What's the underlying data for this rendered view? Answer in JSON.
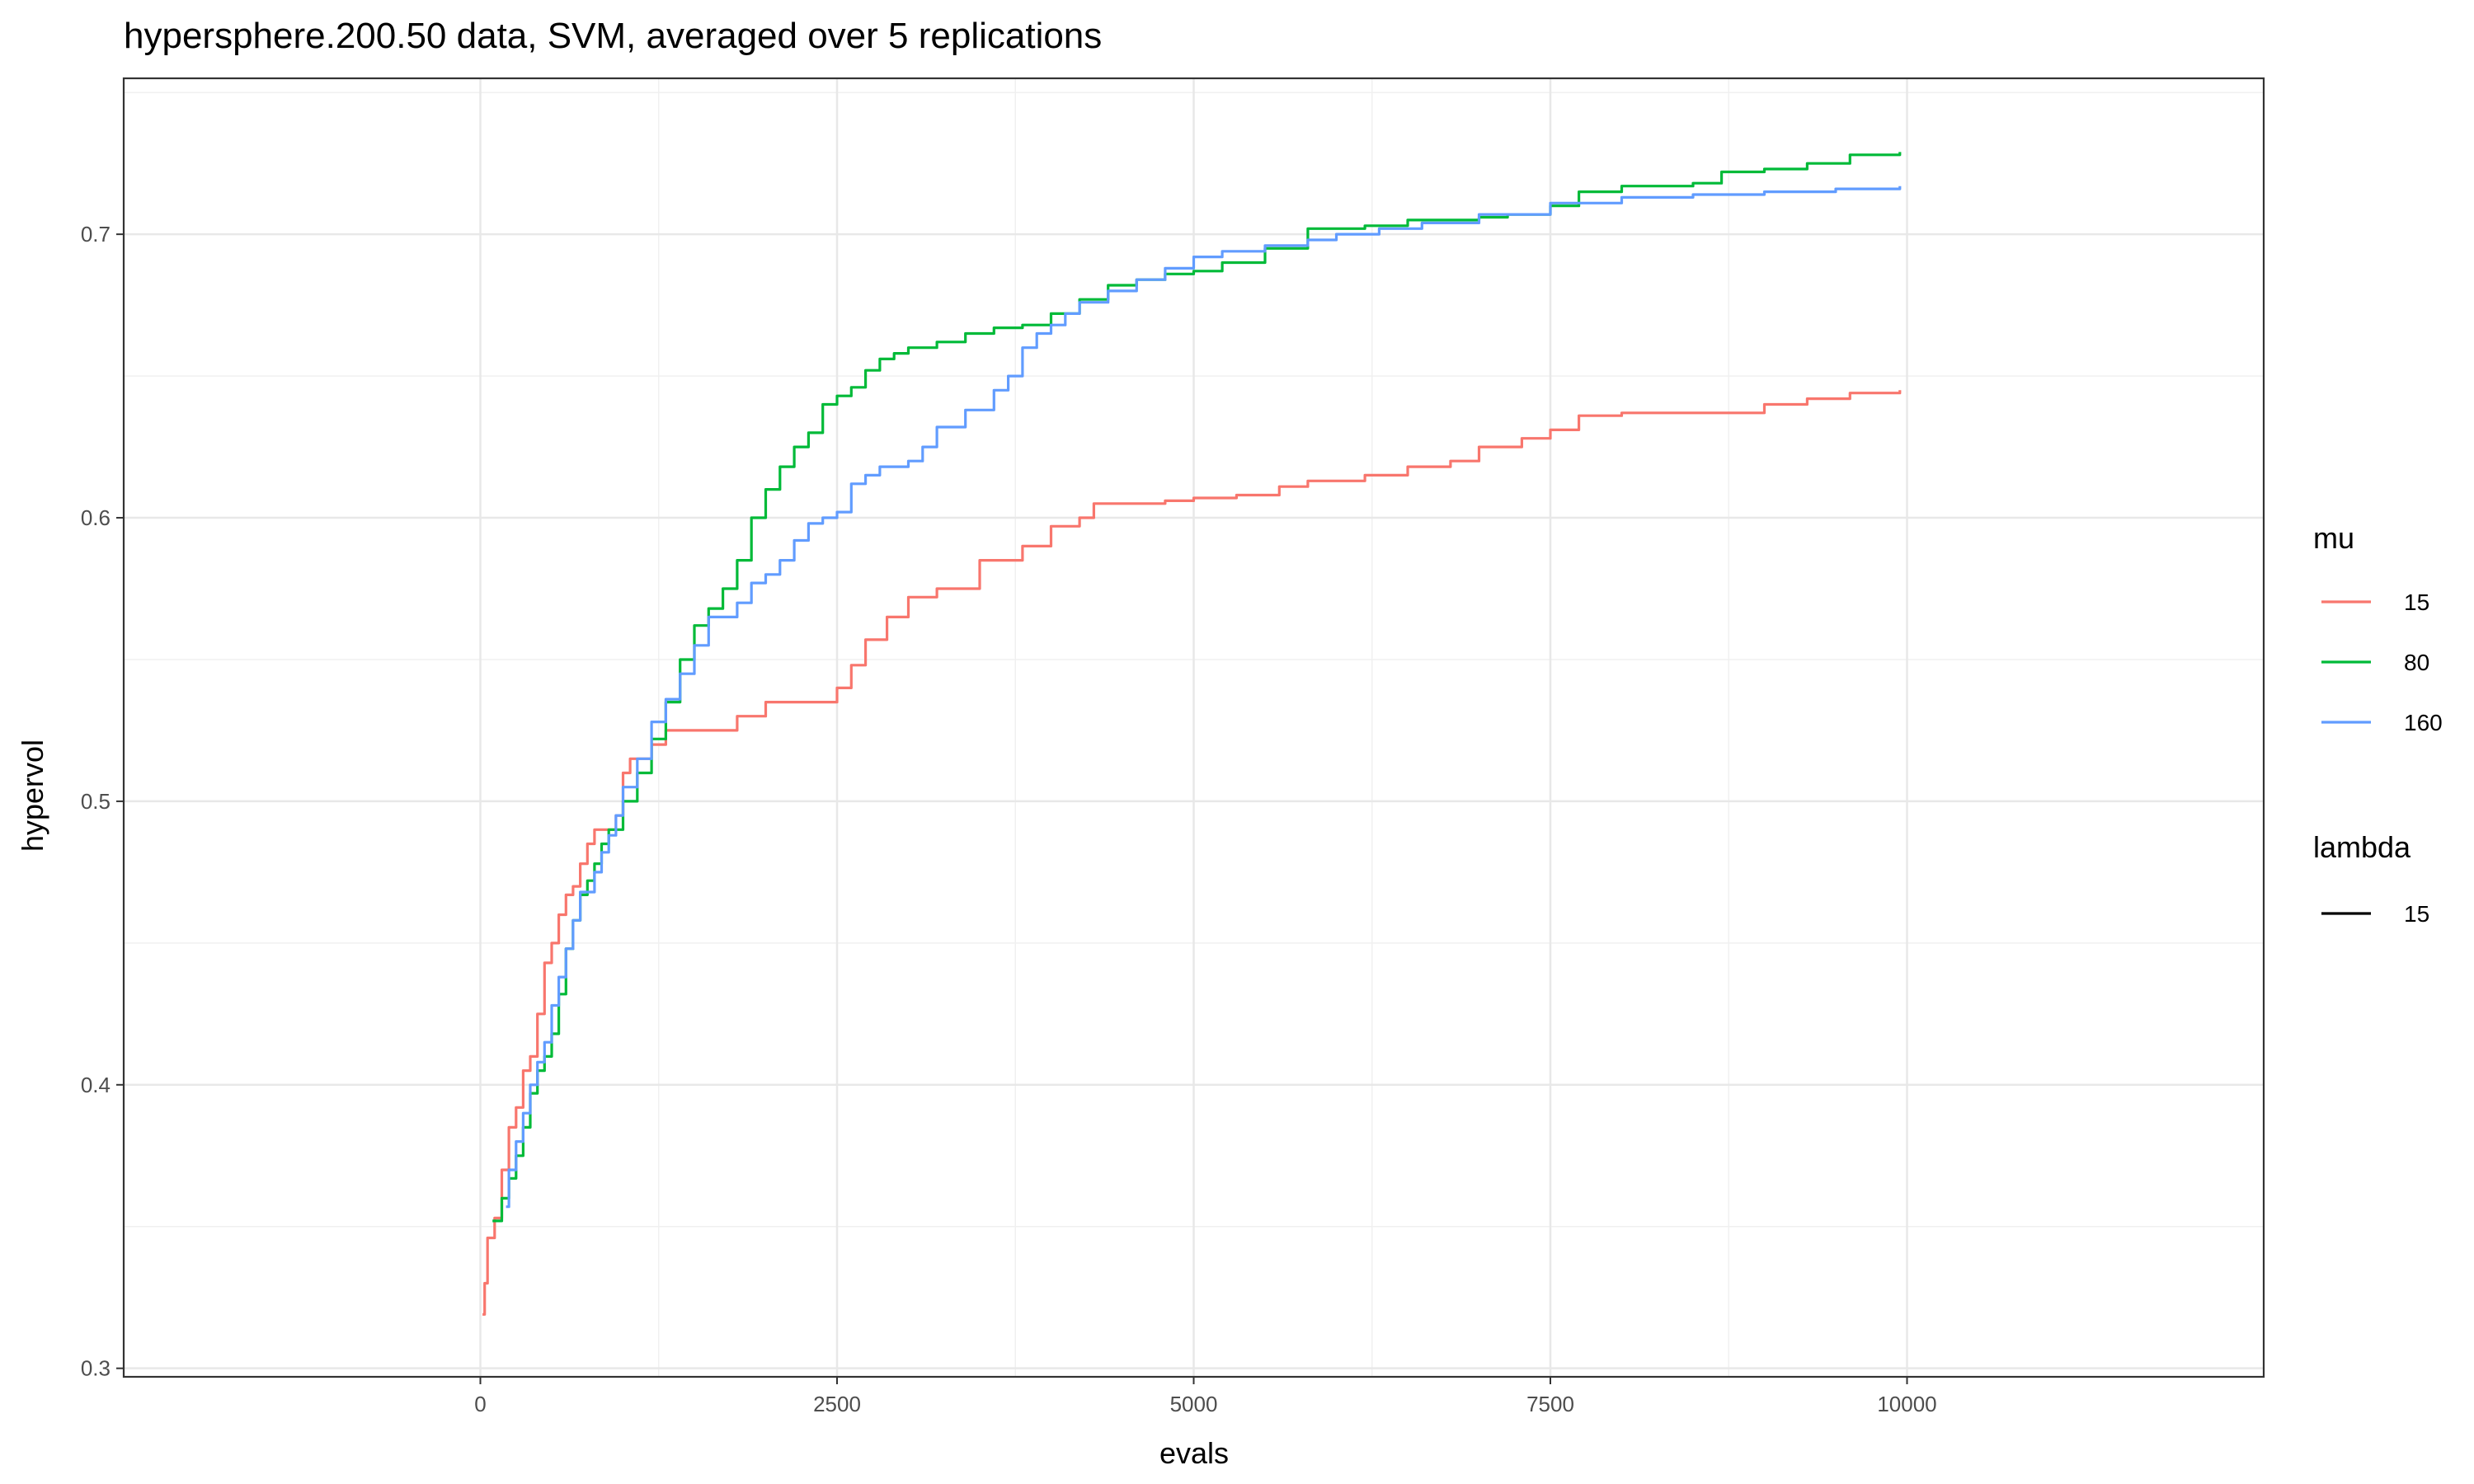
{
  "chart_data": {
    "type": "line",
    "title": "hypersphere.200.50 data, SVM, averaged over 5 replications",
    "xlabel": "evals",
    "ylabel": "hypervol",
    "xlim": [
      -2500,
      12500
    ],
    "ylim": [
      0.297,
      0.755
    ],
    "x_ticks": [
      0,
      2500,
      5000,
      7500,
      10000
    ],
    "x_tick_labels": [
      "0",
      "2500",
      "5000",
      "7500",
      "10000"
    ],
    "y_ticks": [
      0.3,
      0.4,
      0.5,
      0.6,
      0.7
    ],
    "y_tick_labels": [
      "0.3",
      "0.4",
      "0.5",
      "0.6",
      "0.7"
    ],
    "grid": true,
    "step": true,
    "legend": {
      "position": "right",
      "mu_title": "mu",
      "lambda_title": "lambda",
      "lambda_entries": [
        "15"
      ]
    },
    "series": [
      {
        "name": "15",
        "color": "#F8766D",
        "points": [
          [
            15,
            0.319
          ],
          [
            30,
            0.33
          ],
          [
            50,
            0.346
          ],
          [
            100,
            0.353
          ],
          [
            150,
            0.37
          ],
          [
            200,
            0.385
          ],
          [
            250,
            0.392
          ],
          [
            300,
            0.405
          ],
          [
            350,
            0.41
          ],
          [
            400,
            0.425
          ],
          [
            450,
            0.443
          ],
          [
            500,
            0.45
          ],
          [
            550,
            0.46
          ],
          [
            600,
            0.467
          ],
          [
            650,
            0.47
          ],
          [
            700,
            0.478
          ],
          [
            750,
            0.485
          ],
          [
            800,
            0.49
          ],
          [
            900,
            0.49
          ],
          [
            950,
            0.495
          ],
          [
            1000,
            0.51
          ],
          [
            1050,
            0.515
          ],
          [
            1200,
            0.52
          ],
          [
            1300,
            0.525
          ],
          [
            1500,
            0.525
          ],
          [
            1800,
            0.53
          ],
          [
            2000,
            0.535
          ],
          [
            2300,
            0.535
          ],
          [
            2500,
            0.54
          ],
          [
            2600,
            0.548
          ],
          [
            2700,
            0.557
          ],
          [
            2800,
            0.557
          ],
          [
            2850,
            0.565
          ],
          [
            3000,
            0.572
          ],
          [
            3200,
            0.575
          ],
          [
            3400,
            0.575
          ],
          [
            3500,
            0.585
          ],
          [
            3700,
            0.585
          ],
          [
            3800,
            0.59
          ],
          [
            4000,
            0.597
          ],
          [
            4200,
            0.6
          ],
          [
            4300,
            0.605
          ],
          [
            4600,
            0.605
          ],
          [
            4800,
            0.606
          ],
          [
            5000,
            0.607
          ],
          [
            5300,
            0.608
          ],
          [
            5600,
            0.611
          ],
          [
            5800,
            0.613
          ],
          [
            6200,
            0.615
          ],
          [
            6500,
            0.618
          ],
          [
            6800,
            0.62
          ],
          [
            7000,
            0.625
          ],
          [
            7300,
            0.628
          ],
          [
            7500,
            0.631
          ],
          [
            7700,
            0.636
          ],
          [
            8000,
            0.637
          ],
          [
            8500,
            0.637
          ],
          [
            8800,
            0.637
          ],
          [
            9000,
            0.64
          ],
          [
            9300,
            0.642
          ],
          [
            9600,
            0.644
          ],
          [
            9950,
            0.645
          ]
        ]
      },
      {
        "name": "80",
        "color": "#00BA38",
        "points": [
          [
            85,
            0.352
          ],
          [
            150,
            0.36
          ],
          [
            200,
            0.367
          ],
          [
            250,
            0.375
          ],
          [
            300,
            0.385
          ],
          [
            350,
            0.397
          ],
          [
            400,
            0.405
          ],
          [
            450,
            0.41
          ],
          [
            500,
            0.418
          ],
          [
            550,
            0.432
          ],
          [
            600,
            0.448
          ],
          [
            650,
            0.458
          ],
          [
            700,
            0.467
          ],
          [
            750,
            0.472
          ],
          [
            800,
            0.478
          ],
          [
            850,
            0.485
          ],
          [
            900,
            0.49
          ],
          [
            1000,
            0.5
          ],
          [
            1100,
            0.51
          ],
          [
            1200,
            0.522
          ],
          [
            1300,
            0.535
          ],
          [
            1400,
            0.55
          ],
          [
            1500,
            0.562
          ],
          [
            1600,
            0.568
          ],
          [
            1700,
            0.575
          ],
          [
            1800,
            0.585
          ],
          [
            1900,
            0.6
          ],
          [
            2000,
            0.61
          ],
          [
            2100,
            0.618
          ],
          [
            2200,
            0.625
          ],
          [
            2300,
            0.63
          ],
          [
            2400,
            0.64
          ],
          [
            2500,
            0.643
          ],
          [
            2600,
            0.646
          ],
          [
            2700,
            0.652
          ],
          [
            2800,
            0.656
          ],
          [
            2900,
            0.658
          ],
          [
            3000,
            0.66
          ],
          [
            3200,
            0.662
          ],
          [
            3400,
            0.665
          ],
          [
            3600,
            0.667
          ],
          [
            3800,
            0.668
          ],
          [
            4000,
            0.672
          ],
          [
            4200,
            0.677
          ],
          [
            4400,
            0.682
          ],
          [
            4600,
            0.684
          ],
          [
            4800,
            0.686
          ],
          [
            5000,
            0.687
          ],
          [
            5200,
            0.69
          ],
          [
            5500,
            0.695
          ],
          [
            5800,
            0.702
          ],
          [
            6200,
            0.703
          ],
          [
            6500,
            0.705
          ],
          [
            7000,
            0.706
          ],
          [
            7200,
            0.707
          ],
          [
            7500,
            0.71
          ],
          [
            7700,
            0.715
          ],
          [
            8000,
            0.717
          ],
          [
            8500,
            0.718
          ],
          [
            8700,
            0.722
          ],
          [
            9000,
            0.723
          ],
          [
            9300,
            0.725
          ],
          [
            9600,
            0.728
          ],
          [
            9950,
            0.729
          ]
        ]
      },
      {
        "name": "160",
        "color": "#619CFF",
        "points": [
          [
            180,
            0.357
          ],
          [
            200,
            0.37
          ],
          [
            250,
            0.38
          ],
          [
            300,
            0.39
          ],
          [
            350,
            0.4
          ],
          [
            400,
            0.408
          ],
          [
            450,
            0.415
          ],
          [
            500,
            0.428
          ],
          [
            550,
            0.438
          ],
          [
            600,
            0.448
          ],
          [
            650,
            0.458
          ],
          [
            700,
            0.468
          ],
          [
            800,
            0.475
          ],
          [
            850,
            0.482
          ],
          [
            900,
            0.488
          ],
          [
            950,
            0.495
          ],
          [
            1000,
            0.505
          ],
          [
            1100,
            0.515
          ],
          [
            1200,
            0.528
          ],
          [
            1300,
            0.536
          ],
          [
            1400,
            0.545
          ],
          [
            1500,
            0.555
          ],
          [
            1600,
            0.565
          ],
          [
            1800,
            0.57
          ],
          [
            1900,
            0.577
          ],
          [
            2000,
            0.58
          ],
          [
            2100,
            0.585
          ],
          [
            2200,
            0.592
          ],
          [
            2300,
            0.598
          ],
          [
            2400,
            0.6
          ],
          [
            2500,
            0.602
          ],
          [
            2600,
            0.612
          ],
          [
            2700,
            0.615
          ],
          [
            2800,
            0.618
          ],
          [
            3000,
            0.62
          ],
          [
            3100,
            0.625
          ],
          [
            3200,
            0.632
          ],
          [
            3400,
            0.638
          ],
          [
            3600,
            0.645
          ],
          [
            3700,
            0.65
          ],
          [
            3800,
            0.66
          ],
          [
            3900,
            0.665
          ],
          [
            4000,
            0.668
          ],
          [
            4100,
            0.672
          ],
          [
            4200,
            0.676
          ],
          [
            4400,
            0.68
          ],
          [
            4600,
            0.684
          ],
          [
            4800,
            0.688
          ],
          [
            5000,
            0.692
          ],
          [
            5200,
            0.694
          ],
          [
            5500,
            0.696
          ],
          [
            5800,
            0.698
          ],
          [
            6000,
            0.7
          ],
          [
            6300,
            0.702
          ],
          [
            6600,
            0.704
          ],
          [
            7000,
            0.707
          ],
          [
            7500,
            0.711
          ],
          [
            8000,
            0.713
          ],
          [
            8500,
            0.714
          ],
          [
            9000,
            0.715
          ],
          [
            9500,
            0.716
          ],
          [
            9950,
            0.717
          ]
        ]
      }
    ]
  }
}
